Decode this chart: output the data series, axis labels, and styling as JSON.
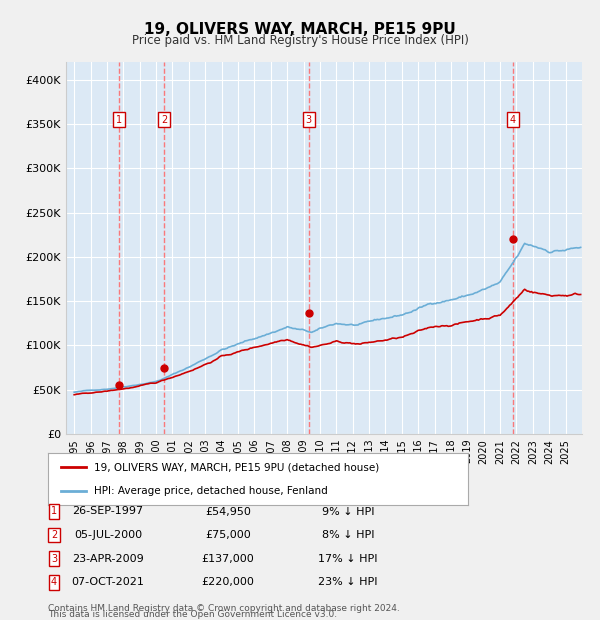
{
  "title": "19, OLIVERS WAY, MARCH, PE15 9PU",
  "subtitle": "Price paid vs. HM Land Registry's House Price Index (HPI)",
  "footer1": "Contains HM Land Registry data © Crown copyright and database right 2024.",
  "footer2": "This data is licensed under the Open Government Licence v3.0.",
  "legend_line1": "19, OLIVERS WAY, MARCH, PE15 9PU (detached house)",
  "legend_line2": "HPI: Average price, detached house, Fenland",
  "sales": [
    {
      "label": "1",
      "date": "26-SEP-1997",
      "price": 54950,
      "year": 1997.73,
      "pct": "9% ↓ HPI"
    },
    {
      "label": "2",
      "date": "05-JUL-2000",
      "price": 75000,
      "year": 2000.51,
      "pct": "8% ↓ HPI"
    },
    {
      "label": "3",
      "date": "23-APR-2009",
      "price": 137000,
      "year": 2009.31,
      "pct": "17% ↓ HPI"
    },
    {
      "label": "4",
      "date": "07-OCT-2021",
      "price": 220000,
      "year": 2021.77,
      "pct": "23% ↓ HPI"
    }
  ],
  "hpi_color": "#6baed6",
  "sale_color": "#cc0000",
  "dashed_color": "#ff6666",
  "bg_color": "#dce9f5",
  "plot_bg": "#dce9f5",
  "grid_color": "#ffffff",
  "ylim": [
    0,
    420000
  ],
  "yticks": [
    0,
    50000,
    100000,
    150000,
    200000,
    250000,
    300000,
    350000,
    400000
  ],
  "xlim": [
    1994.5,
    2026.0
  ],
  "xticks": [
    1995,
    1996,
    1997,
    1998,
    1999,
    2000,
    2001,
    2002,
    2003,
    2004,
    2005,
    2006,
    2007,
    2008,
    2009,
    2010,
    2011,
    2012,
    2013,
    2014,
    2015,
    2016,
    2017,
    2018,
    2019,
    2020,
    2021,
    2022,
    2023,
    2024,
    2025
  ]
}
